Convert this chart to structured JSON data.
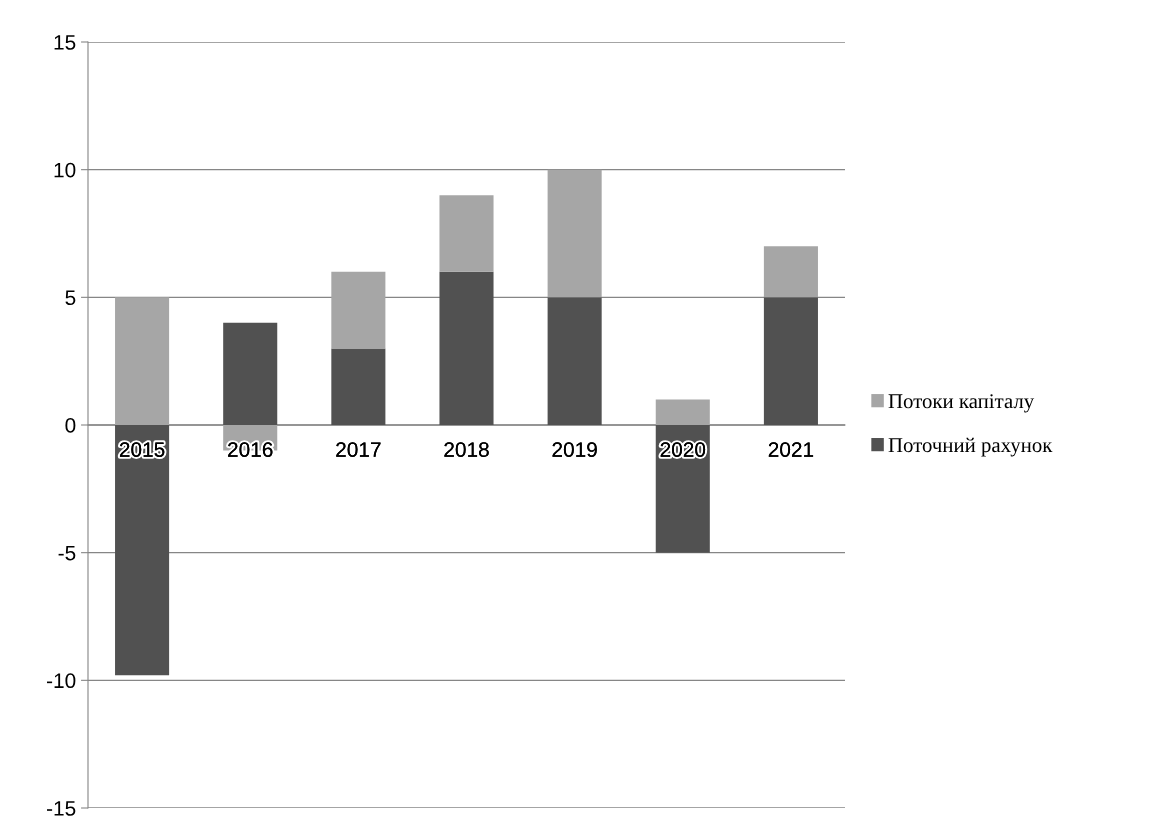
{
  "chart_data": {
    "type": "bar",
    "stacked": true,
    "categories": [
      "2015",
      "2016",
      "2017",
      "2018",
      "2019",
      "2020",
      "2021"
    ],
    "series": [
      {
        "name": "Поточний рахунок",
        "color": "#515151",
        "values": [
          -9.8,
          4,
          3,
          6,
          5,
          -5,
          5
        ]
      },
      {
        "name": "Потоки капіталу",
        "color": "#a6a6a6",
        "values": [
          5,
          -1,
          3,
          3,
          5,
          1,
          2
        ]
      }
    ],
    "ylim": [
      -15,
      15
    ],
    "yticks": [
      -15,
      -10,
      -5,
      0,
      5,
      10,
      15
    ],
    "grid": "y",
    "legend": "right"
  }
}
